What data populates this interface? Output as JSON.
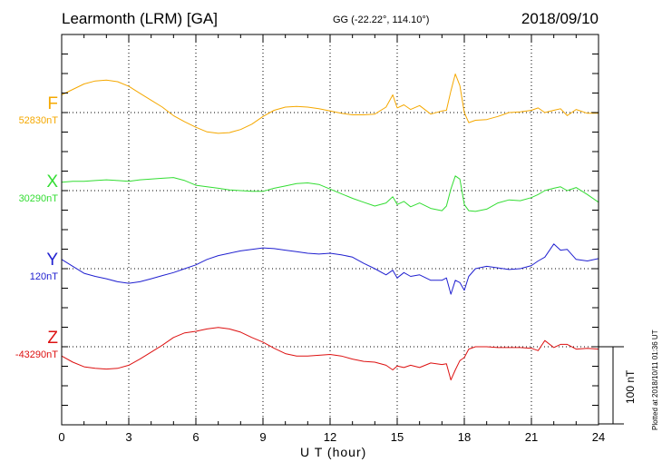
{
  "header": {
    "station": "Learmonth (LRM)  [GA]",
    "coords": "GG (-22.22°, 114.10°)",
    "date": "2018/09/10"
  },
  "footer": "Plotted at 2018/10/11 01:36 UT",
  "scale_bar_label": "100 nT",
  "chart_data": {
    "type": "line",
    "xlabel": "U T (hour)",
    "xlim": [
      0,
      24
    ],
    "xticks": [
      "0",
      "3",
      "6",
      "9",
      "12",
      "15",
      "18",
      "21",
      "24"
    ],
    "scale_bar_nT": 100,
    "series": [
      {
        "name": "F",
        "baseline_label": "52830nT",
        "color": "#f5a800",
        "x": [
          0,
          0.5,
          1,
          1.5,
          2,
          2.5,
          3,
          3.5,
          4,
          4.5,
          5,
          5.5,
          6,
          6.5,
          7,
          7.5,
          8,
          8.5,
          9,
          9.5,
          10,
          10.5,
          11,
          11.5,
          12,
          12.5,
          13,
          13.5,
          14,
          14.5,
          14.8,
          15,
          15.3,
          15.6,
          16,
          16.5,
          17,
          17.2,
          17.4,
          17.6,
          17.8,
          18,
          18.2,
          18.5,
          19,
          19.5,
          20,
          20.5,
          21,
          21.3,
          21.6,
          22,
          22.3,
          22.6,
          23,
          23.5,
          24
        ],
        "values": [
          23,
          30,
          37,
          41,
          42,
          40,
          34,
          25,
          16,
          7,
          -4,
          -12,
          -19,
          -25,
          -27,
          -26,
          -22,
          -15,
          -5,
          3,
          7,
          8,
          7,
          5,
          2,
          -1,
          -3,
          -3,
          -2,
          7,
          23,
          6,
          10,
          4,
          9,
          -2,
          2,
          3,
          28,
          50,
          35,
          0,
          -13,
          -10,
          -9,
          -5,
          0,
          1,
          3,
          6,
          0,
          3,
          5,
          -4,
          4,
          -1,
          -1
        ]
      },
      {
        "name": "X",
        "baseline_label": "30290nT",
        "color": "#33dd33",
        "x": [
          0,
          0.5,
          1,
          1.5,
          2,
          2.5,
          3,
          3.5,
          4,
          4.5,
          5,
          5.5,
          6,
          6.5,
          7,
          7.5,
          8,
          8.5,
          9,
          9.5,
          10,
          10.5,
          11,
          11.5,
          12,
          12.5,
          13,
          13.5,
          14,
          14.5,
          14.8,
          15,
          15.3,
          15.6,
          16,
          16.5,
          17,
          17.2,
          17.4,
          17.6,
          17.8,
          18,
          18.2,
          18.5,
          19,
          19.5,
          20,
          20.5,
          21,
          21.3,
          21.6,
          22,
          22.3,
          22.6,
          23,
          23.5,
          24
        ],
        "values": [
          11,
          12,
          12,
          13,
          14,
          13,
          12,
          14,
          15,
          16,
          17,
          13,
          7,
          5,
          3,
          1,
          0,
          -1,
          -1,
          3,
          6,
          9,
          10,
          8,
          2,
          -4,
          -10,
          -15,
          -20,
          -16,
          -8,
          -18,
          -14,
          -21,
          -16,
          -23,
          -26,
          -20,
          2,
          19,
          15,
          -18,
          -26,
          -27,
          -24,
          -16,
          -12,
          -13,
          -9,
          -5,
          0,
          3,
          5,
          0,
          4,
          -5,
          -15
        ]
      },
      {
        "name": "Y",
        "baseline_label": "120nT",
        "color": "#2020d0",
        "x": [
          0,
          0.5,
          1,
          1.5,
          2,
          2.5,
          3,
          3.5,
          4,
          4.5,
          5,
          5.5,
          6,
          6.5,
          7,
          7.5,
          8,
          8.5,
          9,
          9.5,
          10,
          10.5,
          11,
          11.5,
          12,
          12.5,
          13,
          13.5,
          14,
          14.5,
          14.8,
          15,
          15.3,
          15.6,
          16,
          16.5,
          17,
          17.2,
          17.4,
          17.6,
          17.8,
          18,
          18.2,
          18.5,
          19,
          19.5,
          20,
          20.5,
          21,
          21.3,
          21.6,
          22,
          22.3,
          22.6,
          23,
          23.5,
          24
        ],
        "values": [
          12,
          3,
          -6,
          -10,
          -13,
          -17,
          -19,
          -17,
          -13,
          -9,
          -5,
          0,
          5,
          12,
          17,
          20,
          23,
          25,
          27,
          26,
          24,
          22,
          20,
          19,
          20,
          18,
          15,
          7,
          0,
          -8,
          -2,
          -12,
          -5,
          -10,
          -8,
          -15,
          -15,
          -12,
          -33,
          -15,
          -18,
          -28,
          -10,
          0,
          3,
          1,
          -1,
          0,
          4,
          10,
          15,
          32,
          24,
          25,
          12,
          10,
          13
        ]
      },
      {
        "name": "Z",
        "baseline_label": "-43290nT",
        "color": "#dd1111",
        "x": [
          0,
          0.5,
          1,
          1.5,
          2,
          2.5,
          3,
          3.5,
          4,
          4.5,
          5,
          5.5,
          6,
          6.5,
          7,
          7.5,
          8,
          8.5,
          9,
          9.5,
          10,
          10.5,
          11,
          11.5,
          12,
          12.5,
          13,
          13.5,
          14,
          14.5,
          14.8,
          15,
          15.3,
          15.6,
          16,
          16.5,
          17,
          17.2,
          17.4,
          17.6,
          17.8,
          18,
          18.2,
          18.5,
          19,
          19.5,
          20,
          20.5,
          21,
          21.3,
          21.6,
          22,
          22.3,
          22.6,
          23,
          23.5,
          24
        ],
        "values": [
          -12,
          -20,
          -26,
          -28,
          -29,
          -28,
          -24,
          -16,
          -7,
          2,
          12,
          18,
          20,
          23,
          25,
          23,
          19,
          12,
          6,
          -2,
          -9,
          -12,
          -12,
          -11,
          -10,
          -12,
          -16,
          -19,
          -20,
          -24,
          -30,
          -25,
          -27,
          -24,
          -27,
          -21,
          -23,
          -22,
          -43,
          -30,
          -18,
          -14,
          -3,
          0,
          0,
          -1,
          -1,
          -1,
          -2,
          -5,
          8,
          -1,
          3,
          3,
          -3,
          -2,
          -3
        ]
      }
    ]
  }
}
